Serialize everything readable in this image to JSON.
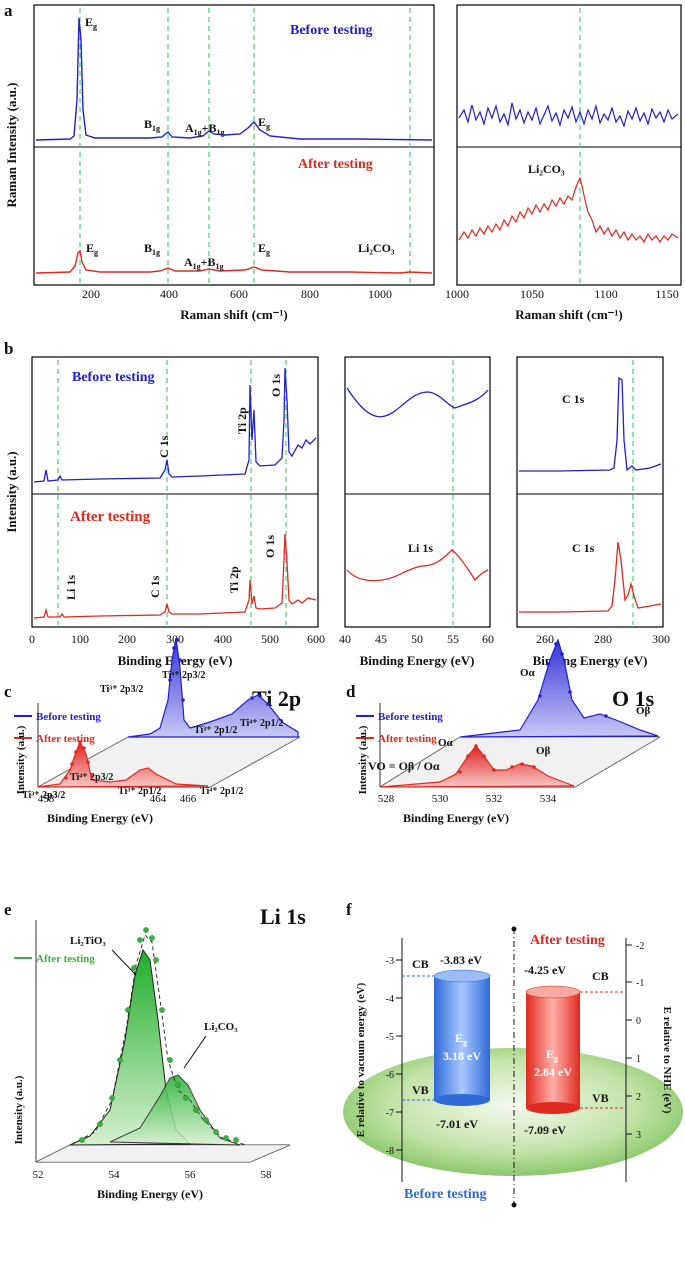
{
  "colors": {
    "blue": "#2020d0",
    "red": "#e02a20",
    "green": "#38b33a",
    "dash": "#46d07a"
  },
  "panels": {
    "a": "a",
    "b": "b",
    "c": "c",
    "d": "d",
    "e": "e",
    "f": "f"
  },
  "legend": {
    "before": "Before testing",
    "after": "After testing"
  },
  "chart_data": [
    {
      "id": "a-main",
      "type": "line",
      "xlabel": "Raman shift (cm⁻¹)",
      "ylabel": "Raman Intensity (a.u.)",
      "xlim": [
        50,
        1150
      ],
      "xticks": [
        "200",
        "400",
        "600",
        "800",
        "1000"
      ],
      "series": [
        {
          "name": "Before testing",
          "peaks": [
            144,
            399,
            515,
            639
          ]
        },
        {
          "name": "After testing",
          "peaks": [
            144,
            399,
            515,
            639
          ]
        }
      ],
      "vlines": [
        144,
        399,
        515,
        639,
        1088
      ],
      "labels": {
        "eg": "E",
        "eg_sub": "g",
        "b1g": "B",
        "b1g_sub": "1g",
        "a1g": "A",
        "a1g_sub": "1g",
        "plus": "+",
        "li2co3": "Li₂CO₃"
      }
    },
    {
      "id": "a-inset",
      "type": "line",
      "xlabel": "Raman shift (cm⁻¹)",
      "xlim": [
        1000,
        1150
      ],
      "xticks": [
        "1000",
        "1050",
        "1100",
        "1150"
      ],
      "vline": 1088,
      "label": "Li₂CO₃"
    },
    {
      "id": "b-survey",
      "type": "line",
      "xlabel": "Binding Energy (eV)",
      "ylabel": "Intensity (a.u.)",
      "xlim": [
        0,
        600
      ],
      "xticks": [
        "0",
        "100",
        "200",
        "300",
        "400",
        "500",
        "600"
      ],
      "vlines": [
        55,
        285,
        459,
        531
      ],
      "labels": {
        "c1s": "C 1s",
        "ti2p": "Ti 2p",
        "o1s": "O 1s",
        "li1s": "Li 1s"
      }
    },
    {
      "id": "b-li1s",
      "type": "line",
      "xlabel": "Binding Energy (eV)",
      "xlim": [
        40,
        60
      ],
      "xticks": [
        "40",
        "45",
        "50",
        "55",
        "60"
      ],
      "vline": 55,
      "label": "Li 1s"
    },
    {
      "id": "b-c1s",
      "type": "line",
      "xlabel": "Binding Energy (eV)",
      "xlim": [
        250,
        300
      ],
      "xticks": [
        "260",
        "280",
        "300"
      ],
      "vline": 289,
      "label": "C 1s"
    },
    {
      "id": "c",
      "type": "line",
      "title": "Ti 2p",
      "xlabel": "Binding Energy (eV)",
      "ylabel": "Intensity (a.u.)",
      "xticks": [
        "458",
        "464",
        "466"
      ],
      "labels": [
        "Ti³⁺ 2p3/2",
        "Ti⁴⁺ 2p3/2",
        "Ti³⁺ 2p1/2",
        "Ti⁴⁺ 2p1/2"
      ]
    },
    {
      "id": "d",
      "type": "line",
      "title": "O 1s",
      "xlabel": "Binding Energy (eV)",
      "ylabel": "Intensity (a.u.)",
      "xticks": [
        "528",
        "530",
        "532",
        "534"
      ],
      "labels": {
        "oa": "Oα",
        "ob": "Oβ"
      },
      "formula": "VO = Oβ / Oα"
    },
    {
      "id": "e",
      "type": "line",
      "title": "Li 1s",
      "xlabel": "Binding Energy (eV)",
      "ylabel": "Intensity (a.u.)",
      "xticks": [
        "52",
        "54",
        "56",
        "58"
      ],
      "legend": "After testing",
      "labels": {
        "lto": "Li₂TiO₃",
        "lco": "Li₂CO₃"
      }
    },
    {
      "id": "f",
      "type": "table",
      "ylabel_left": "E relative to vacuum energy (eV)",
      "ylabel_right": "E relative to NHE (eV)",
      "left_ticks": [
        "-3",
        "-4",
        "-5",
        "-6",
        "-7",
        "-8"
      ],
      "right_ticks": [
        "-2",
        "-1",
        "0",
        "1",
        "2",
        "3"
      ],
      "before": {
        "cb": "-3.83 eV",
        "vb": "-7.01 eV",
        "eg": "E",
        "eg_sub": "g",
        "gap": "3.18 eV",
        "label": "Before testing"
      },
      "after": {
        "cb": "-4.25 eV",
        "vb": "-7.09 eV",
        "eg": "E",
        "eg_sub": "g",
        "gap": "2.84 eV",
        "label": "After testing"
      },
      "cb": "CB",
      "vb": "VB"
    }
  ]
}
